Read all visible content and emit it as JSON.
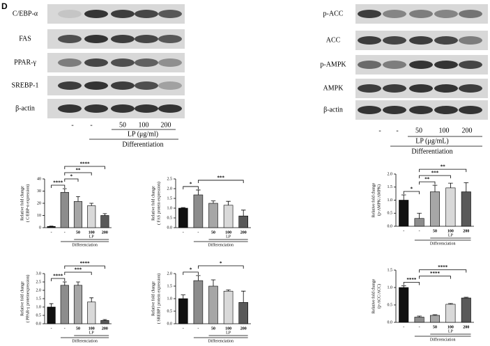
{
  "panel_label": "D",
  "blots": [
    {
      "labels": [
        "C/EBP-α",
        "FAS",
        "PPAR-γ",
        "SREBP-1",
        "β-actin"
      ],
      "lanes": [
        "-",
        "-",
        "50",
        "100",
        "200"
      ],
      "treatment": "LP (μg/ml)",
      "condition": "Differentiation"
    },
    {
      "labels": [
        "p-ACC",
        "ACC",
        "p-AMPK",
        "AMPK",
        "β-actin"
      ],
      "lanes": [
        "-",
        "-",
        "50",
        "100",
        "200"
      ],
      "treatment": "LP (μg/mL)",
      "condition": "Differentiation"
    }
  ],
  "chart_data": [
    {
      "type": "bar",
      "ylabel": [
        "Relative fold change",
        "( C/EBP-α expression)"
      ],
      "categories": [
        "-",
        "-",
        "50",
        "100",
        "200"
      ],
      "values": [
        1,
        29,
        21.5,
        18,
        10
      ],
      "errors": [
        0.3,
        3,
        4,
        2,
        1.5
      ],
      "colors": [
        "#111111",
        "#8c8c8c",
        "#a6a6a6",
        "#d9d9d9",
        "#595959"
      ],
      "ylim": [
        0,
        40
      ],
      "yticks": [
        0,
        10,
        20,
        30,
        40
      ],
      "treatment": "LP",
      "condition": "Differenciation",
      "significance": [
        {
          "from": 1,
          "to": 0,
          "label": "****"
        },
        {
          "from": 1,
          "to": 2,
          "label": "*"
        },
        {
          "from": 1,
          "to": 3,
          "label": "**"
        },
        {
          "from": 1,
          "to": 4,
          "label": "****"
        }
      ]
    },
    {
      "type": "bar",
      "ylabel": [
        "Relative fold change",
        "( FAS protein expression)"
      ],
      "categories": [
        "-",
        "-",
        "50",
        "100",
        "200"
      ],
      "values": [
        1.0,
        1.68,
        1.25,
        1.15,
        0.6
      ],
      "errors": [
        0.03,
        0.25,
        0.12,
        0.2,
        0.3
      ],
      "colors": [
        "#111111",
        "#8c8c8c",
        "#a6a6a6",
        "#d9d9d9",
        "#595959"
      ],
      "ylim": [
        0,
        2.5
      ],
      "yticks": [
        {
          "value": 0,
          "label": "0.0"
        },
        {
          "value": 0.5,
          "label": "0.5"
        },
        {
          "value": 1,
          "label": "1.0"
        },
        {
          "value": 1.5,
          "label": "1.5"
        },
        {
          "value": 2,
          "label": "2.0"
        },
        {
          "value": 2.5,
          "label": "2.5"
        }
      ],
      "treatment": "LP",
      "condition": "Differenciation",
      "significance": [
        {
          "from": 0,
          "to": 1,
          "label": "*"
        },
        {
          "from": 1,
          "to": 4,
          "label": "***"
        }
      ]
    },
    {
      "type": "bar",
      "ylabel": [
        "Relative fold change",
        "(p-AMPK/AMPK)"
      ],
      "categories": [
        "-",
        "-",
        "50",
        "100",
        "200"
      ],
      "values": [
        1.0,
        0.3,
        1.32,
        1.47,
        1.32
      ],
      "errors": [
        0.2,
        0.2,
        0.25,
        0.18,
        0.35
      ],
      "colors": [
        "#111111",
        "#8c8c8c",
        "#a6a6a6",
        "#d9d9d9",
        "#595959"
      ],
      "ylim": [
        0,
        2.0
      ],
      "yticks": [
        {
          "value": 0,
          "label": "0.0"
        },
        {
          "value": 0.5,
          "label": "0.5"
        },
        {
          "value": 1,
          "label": "1.0"
        },
        {
          "value": 1.5,
          "label": "1.5"
        },
        {
          "value": 2,
          "label": "2.0"
        }
      ],
      "treatment": "LP",
      "condition": "Differenciation",
      "significance": [
        {
          "from": 0,
          "to": 1,
          "label": "*"
        },
        {
          "from": 1,
          "to": 2,
          "label": "**"
        },
        {
          "from": 1,
          "to": 3,
          "label": "***"
        },
        {
          "from": 1,
          "to": 4,
          "label": "**"
        }
      ]
    },
    {
      "type": "bar",
      "ylabel": [
        "Relative fold change",
        "( PPAR-γ proteinexpression)"
      ],
      "categories": [
        "-",
        "-",
        "50",
        "100",
        "200"
      ],
      "values": [
        1.0,
        2.3,
        2.3,
        1.3,
        0.2
      ],
      "errors": [
        0.2,
        0.2,
        0.2,
        0.25,
        0.05
      ],
      "colors": [
        "#111111",
        "#8c8c8c",
        "#a6a6a6",
        "#d9d9d9",
        "#595959"
      ],
      "ylim": [
        0,
        3.0
      ],
      "yticks": [
        {
          "value": 0,
          "label": "0.0"
        },
        {
          "value": 0.5,
          "label": "0.5"
        },
        {
          "value": 1,
          "label": "1.0"
        },
        {
          "value": 1.5,
          "label": "1.5"
        },
        {
          "value": 2,
          "label": "2.0"
        },
        {
          "value": 2.5,
          "label": "2.5"
        },
        {
          "value": 3,
          "label": "3.0"
        }
      ],
      "treatment": "LP",
      "condition": "Differenciation",
      "significance": [
        {
          "from": 1,
          "to": 0,
          "label": "****"
        },
        {
          "from": 1,
          "to": 3,
          "label": "***"
        },
        {
          "from": 1,
          "to": 4,
          "label": "****"
        }
      ]
    },
    {
      "type": "bar",
      "ylabel": [
        "Relative fold change",
        "( SREBP1 protein expression)"
      ],
      "categories": [
        "-",
        "-",
        "50",
        "100",
        "200"
      ],
      "values": [
        1.0,
        1.72,
        1.5,
        1.3,
        0.85
      ],
      "errors": [
        0.15,
        0.2,
        0.25,
        0.05,
        0.45
      ],
      "colors": [
        "#111111",
        "#8c8c8c",
        "#a6a6a6",
        "#d9d9d9",
        "#595959"
      ],
      "ylim": [
        0,
        2.0
      ],
      "yticks": [
        {
          "value": 0,
          "label": "0.0"
        },
        {
          "value": 0.5,
          "label": "0.5"
        },
        {
          "value": 1,
          "label": "1.0"
        },
        {
          "value": 1.5,
          "label": "1.5"
        },
        {
          "value": 2,
          "label": "2.0"
        }
      ],
      "treatment": "LP",
      "condition": "Differenciation",
      "significance": [
        {
          "from": 0,
          "to": 1,
          "label": "*"
        },
        {
          "from": 1,
          "to": 4,
          "label": "*"
        }
      ]
    },
    {
      "type": "bar",
      "ylabel": [
        "Relative fold change",
        "(p-ACC/ACC)"
      ],
      "categories": [
        "-",
        "-",
        "50",
        "100",
        "200"
      ],
      "values": [
        1.0,
        0.15,
        0.2,
        0.52,
        0.7
      ],
      "errors": [
        0.05,
        0.03,
        0.02,
        0.02,
        0.02
      ],
      "colors": [
        "#111111",
        "#8c8c8c",
        "#a6a6a6",
        "#d9d9d9",
        "#595959"
      ],
      "ylim": [
        0,
        1.5
      ],
      "yticks": [
        {
          "value": 0,
          "label": "0.0"
        },
        {
          "value": 0.5,
          "label": "0.5"
        },
        {
          "value": 1,
          "label": "1.0"
        },
        {
          "value": 1.5,
          "label": "1.5"
        }
      ],
      "treatment": "LP",
      "condition": "Differenciation",
      "significance": [
        {
          "from": 1,
          "to": 0,
          "label": "****"
        },
        {
          "from": 1,
          "to": 3,
          "label": "****"
        },
        {
          "from": 1,
          "to": 4,
          "label": "****"
        }
      ]
    }
  ]
}
